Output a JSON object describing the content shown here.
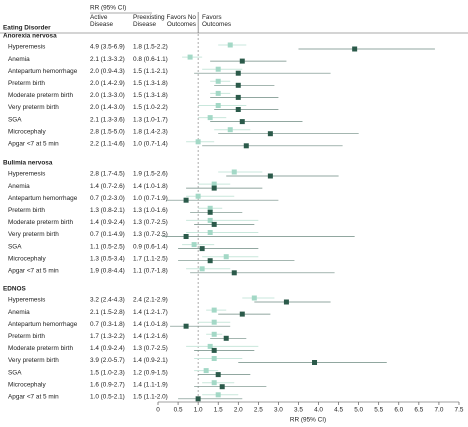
{
  "chart_data": {
    "type": "forest",
    "column_title": "RR (95% CI)",
    "row_header": "Eating Disorder",
    "favors_left": "Favors No Outcomes",
    "favors_right": "Favors Outcomes",
    "xlabel": "RR (95% CI)",
    "reference_line": 1,
    "xlim": [
      0,
      7.5
    ],
    "xticks": [
      0,
      0.5,
      {
        "value": 1,
        "label": "1.0"
      },
      1.5,
      {
        "value": 2,
        "label": "2.0"
      },
      2.5,
      {
        "value": 3,
        "label": "3.0"
      },
      3.5,
      {
        "value": 4,
        "label": "4.0"
      },
      4.5,
      {
        "value": 5,
        "label": "5.0"
      },
      5.5,
      {
        "value": 6,
        "label": "6.0"
      },
      6.5,
      {
        "value": 7,
        "label": "7.0"
      },
      7.5
    ],
    "series": [
      {
        "name": "Active Disease",
        "color": "#2b5a4a"
      },
      {
        "name": "Preexisting Disease",
        "color": "#a3d8c6"
      }
    ],
    "groups": [
      {
        "name": "Anorexia nervosa",
        "categories": [
          "Hyperemesis",
          "Anemia",
          "Antepartum hemorrhage",
          "Preterm birth",
          "Moderate preterm birth",
          "Very preterm birth",
          "SGA",
          "Microcephaly",
          "Apgar <7 at 5 min"
        ],
        "series": [
          {
            "values": [
              4.9,
              2.1,
              2.0,
              2.0,
              2.0,
              2.0,
              2.1,
              2.8,
              2.2
            ],
            "low": [
              3.5,
              1.3,
              0.9,
              1.4,
              1.3,
              1.4,
              1.3,
              1.5,
              1.1
            ],
            "high": [
              6.9,
              3.2,
              4.3,
              2.9,
              3.0,
              3.0,
              3.6,
              5.0,
              4.6
            ],
            "value_labels": [
              "4.9 (3.5-6.9)",
              "2.1 (1.3-3.2)",
              "2.0 (0.9-4.3)",
              "2.0 (1.4-2.9)",
              "2.0 (1.3-3.0)",
              "2.0 (1.4-3.0)",
              "2.1 (1.3-3.6)",
              "2.8 (1.5-5.0)",
              "2.2 (1.1-4.6)"
            ]
          },
          {
            "values": [
              1.8,
              0.8,
              1.5,
              1.5,
              1.5,
              1.5,
              1.3,
              1.8,
              1.0
            ],
            "low": [
              1.5,
              0.6,
              1.1,
              1.3,
              1.3,
              1.0,
              1.0,
              1.4,
              0.7
            ],
            "high": [
              2.2,
              1.1,
              2.1,
              1.8,
              1.8,
              2.2,
              1.7,
              2.3,
              1.4
            ],
            "value_labels": [
              "1.8 (1.5-2.2)",
              "0.8 (0.6-1.1)",
              "1.5 (1.1-2.1)",
              "1.5 (1.3-1.8)",
              "1.5 (1.3-1.8)",
              "1.5 (1.0-2.2)",
              "1.3 (1.0-1.7)",
              "1.8 (1.4-2.3)",
              "1.0 (0.7-1.4)"
            ]
          }
        ]
      },
      {
        "name": "Bulimia nervosa",
        "categories": [
          "Hyperemesis",
          "Anemia",
          "Antepartum hemorrhage",
          "Preterm birth",
          "Moderate preterm birth",
          "Very preterm birth",
          "SGA",
          "Microcephaly",
          "Apgar <7 at 5 min"
        ],
        "series": [
          {
            "values": [
              2.8,
              1.4,
              0.7,
              1.3,
              1.4,
              0.7,
              1.1,
              1.3,
              1.9
            ],
            "low": [
              1.7,
              0.7,
              0.2,
              0.8,
              0.9,
              0.1,
              0.5,
              0.5,
              0.8
            ],
            "high": [
              4.5,
              2.6,
              3.0,
              2.1,
              2.4,
              4.9,
              2.5,
              3.4,
              4.4
            ],
            "value_labels": [
              "2.8 (1.7-4.5)",
              "1.4 (0.7-2.6)",
              "0.7 (0.2-3.0)",
              "1.3 (0.8-2.1)",
              "1.4 (0.9-2.4)",
              "0.7 (0.1-4.9)",
              "1.1 (0.5-2.5)",
              "1.3 (0.5-3.4)",
              "1.9 (0.8-4.4)"
            ]
          },
          {
            "values": [
              1.9,
              1.4,
              1.0,
              1.3,
              1.3,
              1.3,
              0.9,
              1.7,
              1.1
            ],
            "low": [
              1.5,
              1.0,
              0.7,
              1.0,
              0.7,
              0.7,
              0.6,
              1.1,
              0.7
            ],
            "high": [
              2.6,
              1.8,
              1.9,
              1.6,
              2.5,
              2.5,
              1.4,
              2.5,
              1.8
            ],
            "value_labels": [
              "1.9 (1.5-2.6)",
              "1.4 (1.0-1.8)",
              "1.0 (0.7-1.9)",
              "1.3 (1.0-1.6)",
              "1.3 (0.7-2.5)",
              "1.3 (0.7-2.5)",
              "0.9 (0.6-1.4)",
              "1.7 (1.1-2.5)",
              "1.1 (0.7-1.8)"
            ]
          }
        ]
      },
      {
        "name": "EDNOS",
        "categories": [
          "Hyperemesis",
          "Anemia",
          "Antepartum hemorrhage",
          "Preterm birth",
          "Moderate preterm birth",
          "Very preterm birth",
          "SGA",
          "Microcephaly",
          "Apgar <7 at 5 min"
        ],
        "series": [
          {
            "values": [
              3.2,
              2.1,
              0.7,
              1.7,
              1.4,
              3.9,
              1.5,
              1.6,
              1.0
            ],
            "low": [
              2.4,
              1.5,
              0.3,
              1.3,
              0.9,
              2.0,
              1.0,
              0.9,
              0.5
            ],
            "high": [
              4.3,
              2.8,
              1.8,
              2.2,
              2.4,
              5.7,
              2.3,
              2.7,
              2.1
            ],
            "value_labels": [
              "3.2 (2.4-4.3)",
              "2.1 (1.5-2.8)",
              "0.7 (0.3-1.8)",
              "1.7 (1.3-2.2)",
              "1.4 (0.9-2.4)",
              "3.9 (2.0-5.7)",
              "1.5 (1.0-2.3)",
              "1.6 (0.9-2.7)",
              "1.0 (0.5-2.1)"
            ]
          },
          {
            "values": [
              2.4,
              1.4,
              1.4,
              1.4,
              1.3,
              1.4,
              1.2,
              1.4,
              1.5
            ],
            "low": [
              2.1,
              1.2,
              1.0,
              1.2,
              0.7,
              0.9,
              0.9,
              1.1,
              1.1
            ],
            "high": [
              2.9,
              1.7,
              1.8,
              1.6,
              2.5,
              2.1,
              1.5,
              1.9,
              2.0
            ],
            "value_labels": [
              "2.4 (2.1-2.9)",
              "1.4 (1.2-1.7)",
              "1.4 (1.0-1.8)",
              "1.4 (1.2-1.6)",
              "1.3 (0.7-2.5)",
              "1.4 (0.9-2.1)",
              "1.2 (0.9-1.5)",
              "1.4 (1.1-1.9)",
              "1.5 (1.1-2.0)"
            ]
          }
        ]
      }
    ]
  }
}
